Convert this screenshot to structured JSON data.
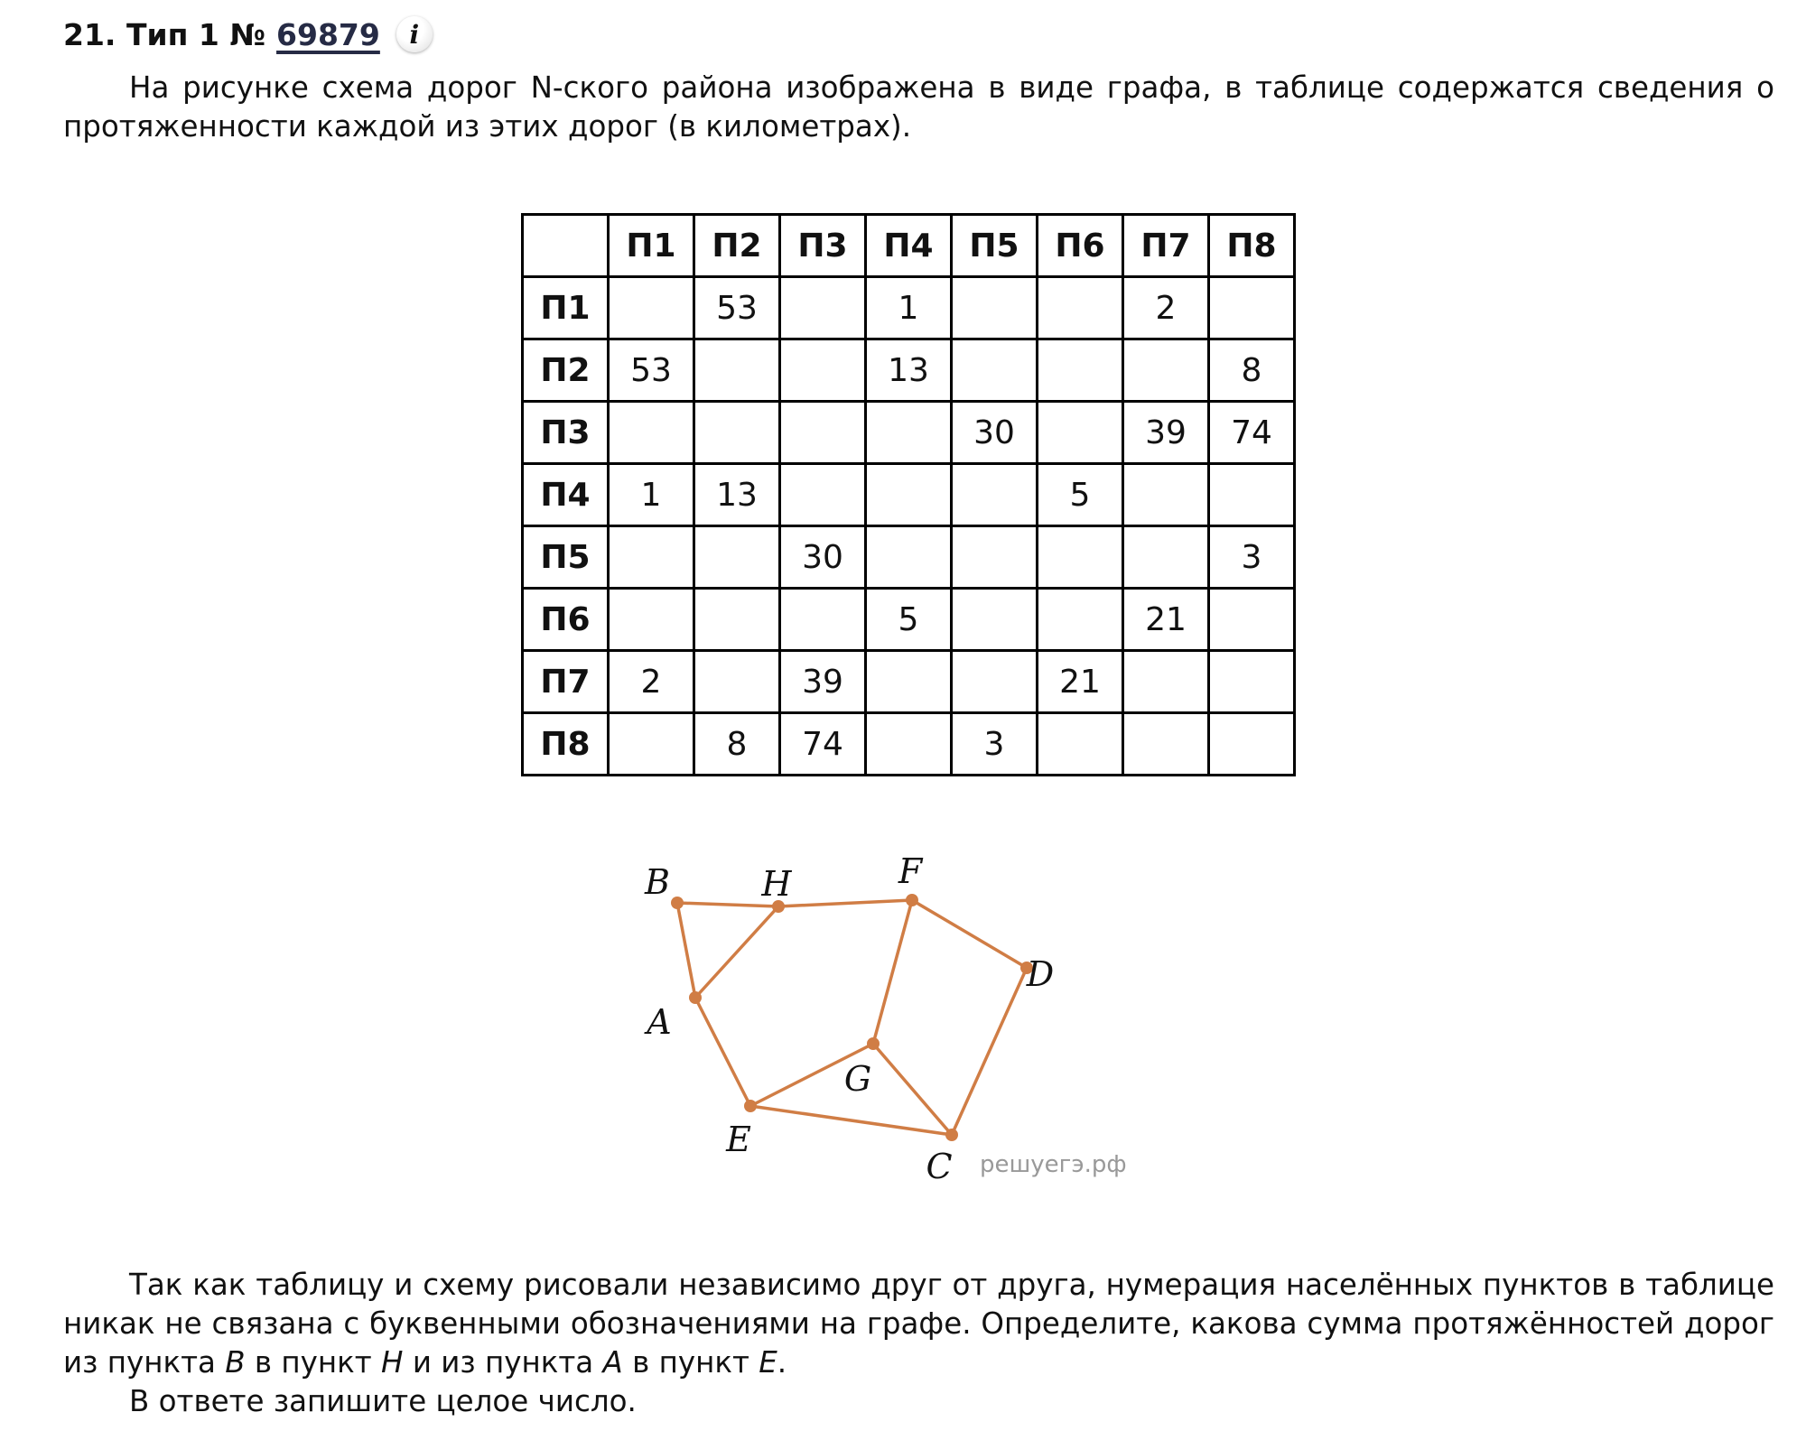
{
  "header": {
    "number": "21.",
    "type": "Тип 1 №",
    "task_id": "69879",
    "info_icon": "i"
  },
  "intro": "На рисунке схема дорог N-ского района изображена в виде графа, в таблице содержатся сведения о протяженности каждой из этих дорог (в километрах).",
  "table": {
    "columns": [
      "П1",
      "П2",
      "П3",
      "П4",
      "П5",
      "П6",
      "П7",
      "П8"
    ],
    "rows": [
      {
        "label": "П1",
        "cells": [
          "",
          "53",
          "",
          "1",
          "",
          "",
          "2",
          ""
        ]
      },
      {
        "label": "П2",
        "cells": [
          "53",
          "",
          "",
          "13",
          "",
          "",
          "",
          "8"
        ]
      },
      {
        "label": "П3",
        "cells": [
          "",
          "",
          "",
          "",
          "30",
          "",
          "39",
          "74"
        ]
      },
      {
        "label": "П4",
        "cells": [
          "1",
          "13",
          "",
          "",
          "",
          "5",
          "",
          ""
        ]
      },
      {
        "label": "П5",
        "cells": [
          "",
          "",
          "30",
          "",
          "",
          "",
          "",
          "3"
        ]
      },
      {
        "label": "П6",
        "cells": [
          "",
          "",
          "",
          "5",
          "",
          "",
          "21",
          ""
        ]
      },
      {
        "label": "П7",
        "cells": [
          "2",
          "",
          "39",
          "",
          "",
          "21",
          "",
          ""
        ]
      },
      {
        "label": "П8",
        "cells": [
          "",
          "8",
          "74",
          "",
          "3",
          "",
          "",
          ""
        ]
      }
    ]
  },
  "graph": {
    "edge_color": "#d07d45",
    "nodes": [
      "A",
      "B",
      "C",
      "D",
      "E",
      "F",
      "G",
      "H"
    ],
    "edges": [
      [
        "B",
        "H"
      ],
      [
        "H",
        "F"
      ],
      [
        "B",
        "A"
      ],
      [
        "A",
        "H"
      ],
      [
        "F",
        "D"
      ],
      [
        "F",
        "G"
      ],
      [
        "A",
        "E"
      ],
      [
        "E",
        "G"
      ],
      [
        "G",
        "C"
      ],
      [
        "E",
        "C"
      ],
      [
        "D",
        "C"
      ]
    ],
    "watermark": "решуегэ.рф"
  },
  "question": "Так как таблицу и схему рисовали независимо друг от друга, нумерация населённых пунктов в таблице никак не связана с буквенными обозначениями на графе. Определите, какова сумма протяжённостей дорог из пункта ",
  "q_b": "B",
  "q_mid1": " в пункт ",
  "q_h": "H",
  "q_mid2": " и из пункта ",
  "q_a": "A",
  "q_mid3": " в пункт ",
  "q_e": "E",
  "q_end": ".",
  "answer_hint": "В ответе запишите целое число."
}
